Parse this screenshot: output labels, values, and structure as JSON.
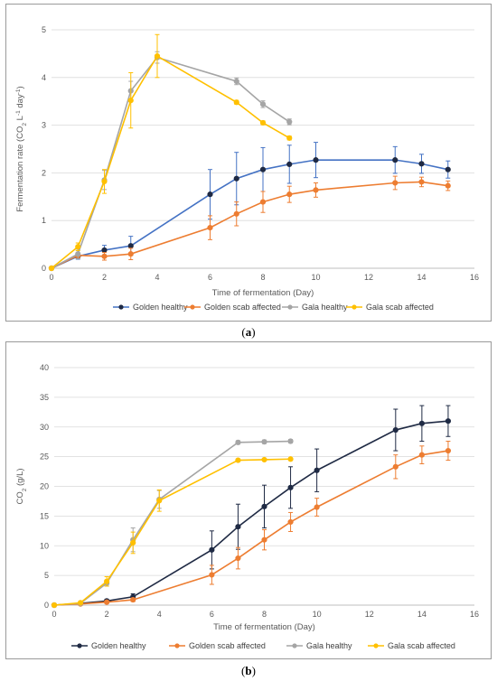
{
  "panels": [
    {
      "label": "a",
      "chart_data": {
        "type": "line",
        "title": "",
        "xlabel": "Time of fermentation (Day)",
        "ylabel": "Fermentation rate (CO2 L-1 day-1)",
        "xlim": [
          0,
          16
        ],
        "ylim": [
          0,
          5
        ],
        "xticks": [
          0,
          2,
          4,
          6,
          8,
          10,
          12,
          14,
          16
        ],
        "yticks": [
          0,
          1,
          2,
          3,
          4,
          5
        ],
        "grid": "horizontal",
        "legend_position": "bottom",
        "series": [
          {
            "name": "Golden healthy",
            "color": "#4472c4",
            "marker_color": "#1f2a44",
            "x": [
              0,
              1,
              2,
              3,
              6,
              7,
              8,
              9,
              10,
              13,
              14,
              15
            ],
            "y": [
              0,
              0.25,
              0.38,
              0.47,
              1.55,
              1.88,
              2.07,
              2.18,
              2.27,
              2.27,
              2.19,
              2.07
            ],
            "err": [
              0,
              0.06,
              0.1,
              0.2,
              0.52,
              0.55,
              0.46,
              0.4,
              0.37,
              0.28,
              0.2,
              0.18
            ]
          },
          {
            "name": "Golden scab affected",
            "color": "#ed7d31",
            "marker_color": "#ed7d31",
            "x": [
              0,
              1,
              2,
              3,
              6,
              7,
              8,
              9,
              10,
              13,
              14,
              15
            ],
            "y": [
              0,
              0.27,
              0.25,
              0.3,
              0.85,
              1.14,
              1.39,
              1.55,
              1.64,
              1.79,
              1.81,
              1.73
            ],
            "err": [
              0,
              0.05,
              0.08,
              0.12,
              0.25,
              0.25,
              0.22,
              0.17,
              0.15,
              0.14,
              0.1,
              0.1
            ]
          },
          {
            "name": "Gala healthy",
            "color": "#a5a5a5",
            "marker_color": "#a5a5a5",
            "x": [
              0,
              1,
              2,
              3,
              4,
              7,
              8,
              9
            ],
            "y": [
              0,
              0.3,
              1.85,
              3.72,
              4.42,
              3.92,
              3.44,
              3.07
            ],
            "err": [
              0,
              0.1,
              0.2,
              0.2,
              0.12,
              0.07,
              0.07,
              0.06
            ]
          },
          {
            "name": "Gala scab affected",
            "color": "#ffc000",
            "marker_color": "#ffc000",
            "x": [
              0,
              1,
              2,
              3,
              4,
              7,
              8,
              9
            ],
            "y": [
              0,
              0.45,
              1.82,
              3.52,
              4.45,
              3.48,
              3.05,
              2.73
            ],
            "err": [
              0,
              0.08,
              0.25,
              0.58,
              0.45,
              0.04,
              0.04,
              0.04
            ]
          }
        ]
      }
    },
    {
      "label": "b",
      "chart_data": {
        "type": "line",
        "title": "",
        "xlabel": "Time of fermentation (Day)",
        "ylabel": "CO2 (g/L)",
        "xlim": [
          0,
          16
        ],
        "ylim": [
          0,
          40
        ],
        "xticks": [
          0,
          2,
          4,
          6,
          8,
          10,
          12,
          14,
          16
        ],
        "yticks": [
          0,
          5,
          10,
          15,
          20,
          25,
          30,
          35,
          40
        ],
        "grid": "horizontal",
        "legend_position": "bottom",
        "series": [
          {
            "name": "Golden healthy",
            "color": "#1f2a44",
            "marker_color": "#1f2a44",
            "x": [
              0,
              1,
              2,
              3,
              6,
              7,
              8,
              9,
              10,
              13,
              14,
              15
            ],
            "y": [
              0,
              0.3,
              0.7,
              1.4,
              9.3,
              13.2,
              16.6,
              19.8,
              22.7,
              29.5,
              30.6,
              31.0
            ],
            "err": [
              0,
              0.1,
              0.3,
              0.5,
              3.2,
              3.8,
              3.6,
              3.5,
              3.6,
              3.5,
              3.0,
              2.6
            ]
          },
          {
            "name": "Golden scab affected",
            "color": "#ed7d31",
            "marker_color": "#ed7d31",
            "x": [
              0,
              1,
              2,
              3,
              6,
              7,
              8,
              9,
              10,
              13,
              14,
              15
            ],
            "y": [
              0,
              0.2,
              0.5,
              0.9,
              5.1,
              7.9,
              11.0,
              14.0,
              16.5,
              23.3,
              25.3,
              26.0
            ],
            "err": [
              0,
              0.1,
              0.2,
              0.3,
              1.6,
              1.8,
              1.7,
              1.6,
              1.5,
              2.0,
              1.5,
              1.6
            ]
          },
          {
            "name": "Gala healthy",
            "color": "#a5a5a5",
            "marker_color": "#a5a5a5",
            "x": [
              0,
              1,
              2,
              3,
              4,
              7,
              8,
              9
            ],
            "y": [
              0,
              0.3,
              3.7,
              11.0,
              17.8,
              27.4,
              27.5,
              27.6
            ],
            "err": [
              0,
              0.1,
              0.5,
              2.0,
              1.5,
              0.3,
              0.3,
              0.3
            ]
          },
          {
            "name": "Gala scab affected",
            "color": "#ffc000",
            "marker_color": "#ffc000",
            "x": [
              0,
              1,
              2,
              3,
              4,
              7,
              8,
              9
            ],
            "y": [
              0,
              0.4,
              4.0,
              10.5,
              17.6,
              24.4,
              24.5,
              24.6
            ],
            "err": [
              0,
              0.1,
              0.8,
              1.8,
              1.8,
              0.2,
              0.2,
              0.2
            ]
          }
        ]
      }
    }
  ]
}
